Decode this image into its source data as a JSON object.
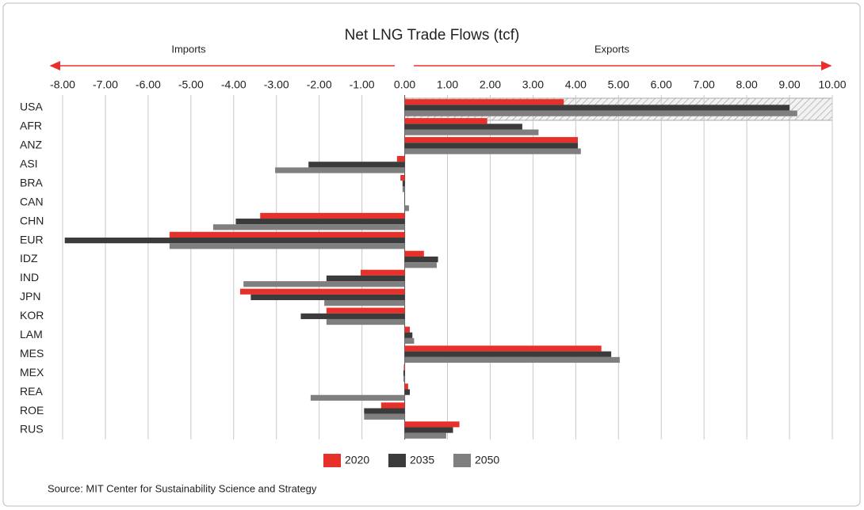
{
  "chart_data": {
    "type": "bar",
    "orientation": "horizontal",
    "title": "Net LNG Trade Flows (tcf)",
    "annotations": [
      "Imports",
      "Exports"
    ],
    "source": "Source: MIT Center for Sustainability Science and Strategy",
    "categories": [
      "USA",
      "AFR",
      "ANZ",
      "ASI",
      "BRA",
      "CAN",
      "CHN",
      "EUR",
      "IDZ",
      "IND",
      "JPN",
      "KOR",
      "LAM",
      "MES",
      "MEX",
      "REA",
      "ROE",
      "RUS"
    ],
    "series": [
      {
        "name": "2020",
        "color": "#e8302a",
        "values": [
          3.72,
          1.93,
          4.05,
          -0.18,
          -0.1,
          0,
          -3.38,
          -5.5,
          0.45,
          -1.03,
          -3.85,
          -1.83,
          0.12,
          4.6,
          -0.02,
          0.08,
          -0.55,
          1.28
        ]
      },
      {
        "name": "2035",
        "color": "#3b3b3b",
        "values": [
          9.0,
          2.75,
          4.05,
          -2.25,
          -0.05,
          0,
          -3.95,
          -7.95,
          0.78,
          -1.83,
          -3.6,
          -2.43,
          0.18,
          4.83,
          -0.03,
          0.12,
          -0.95,
          1.13
        ]
      },
      {
        "name": "2050",
        "color": "#7f7f7f",
        "values": [
          9.18,
          3.13,
          4.12,
          -3.03,
          -0.05,
          0.1,
          -4.48,
          -5.5,
          0.75,
          -3.77,
          -1.88,
          -1.83,
          0.22,
          5.03,
          -0.03,
          -2.2,
          -0.95,
          0.97
        ]
      }
    ],
    "xlim": [
      -8,
      10
    ],
    "xticks": [
      {
        "value": -8,
        "label": "-8.00"
      },
      {
        "value": -7,
        "label": "-7.00"
      },
      {
        "value": -6,
        "label": "-6.00"
      },
      {
        "value": -5,
        "label": "-5.00"
      },
      {
        "value": -4,
        "label": "-4.00"
      },
      {
        "value": -3,
        "label": "-3.00"
      },
      {
        "value": -2,
        "label": "-2.00"
      },
      {
        "value": -1,
        "label": "-1.00"
      },
      {
        "value": 0,
        "label": "0.00"
      },
      {
        "value": 1,
        "label": "1.00"
      },
      {
        "value": 2,
        "label": "2.00"
      },
      {
        "value": 3,
        "label": "3.00"
      },
      {
        "value": 4,
        "label": "4.00"
      },
      {
        "value": 5,
        "label": "5.00"
      },
      {
        "value": 6,
        "label": "6.00"
      },
      {
        "value": 7,
        "label": "7.00"
      },
      {
        "value": 8,
        "label": "8.00"
      },
      {
        "value": 9,
        "label": "9.00"
      },
      {
        "value": 10,
        "label": "10.00"
      }
    ],
    "grid": true,
    "legend": "bottom"
  }
}
